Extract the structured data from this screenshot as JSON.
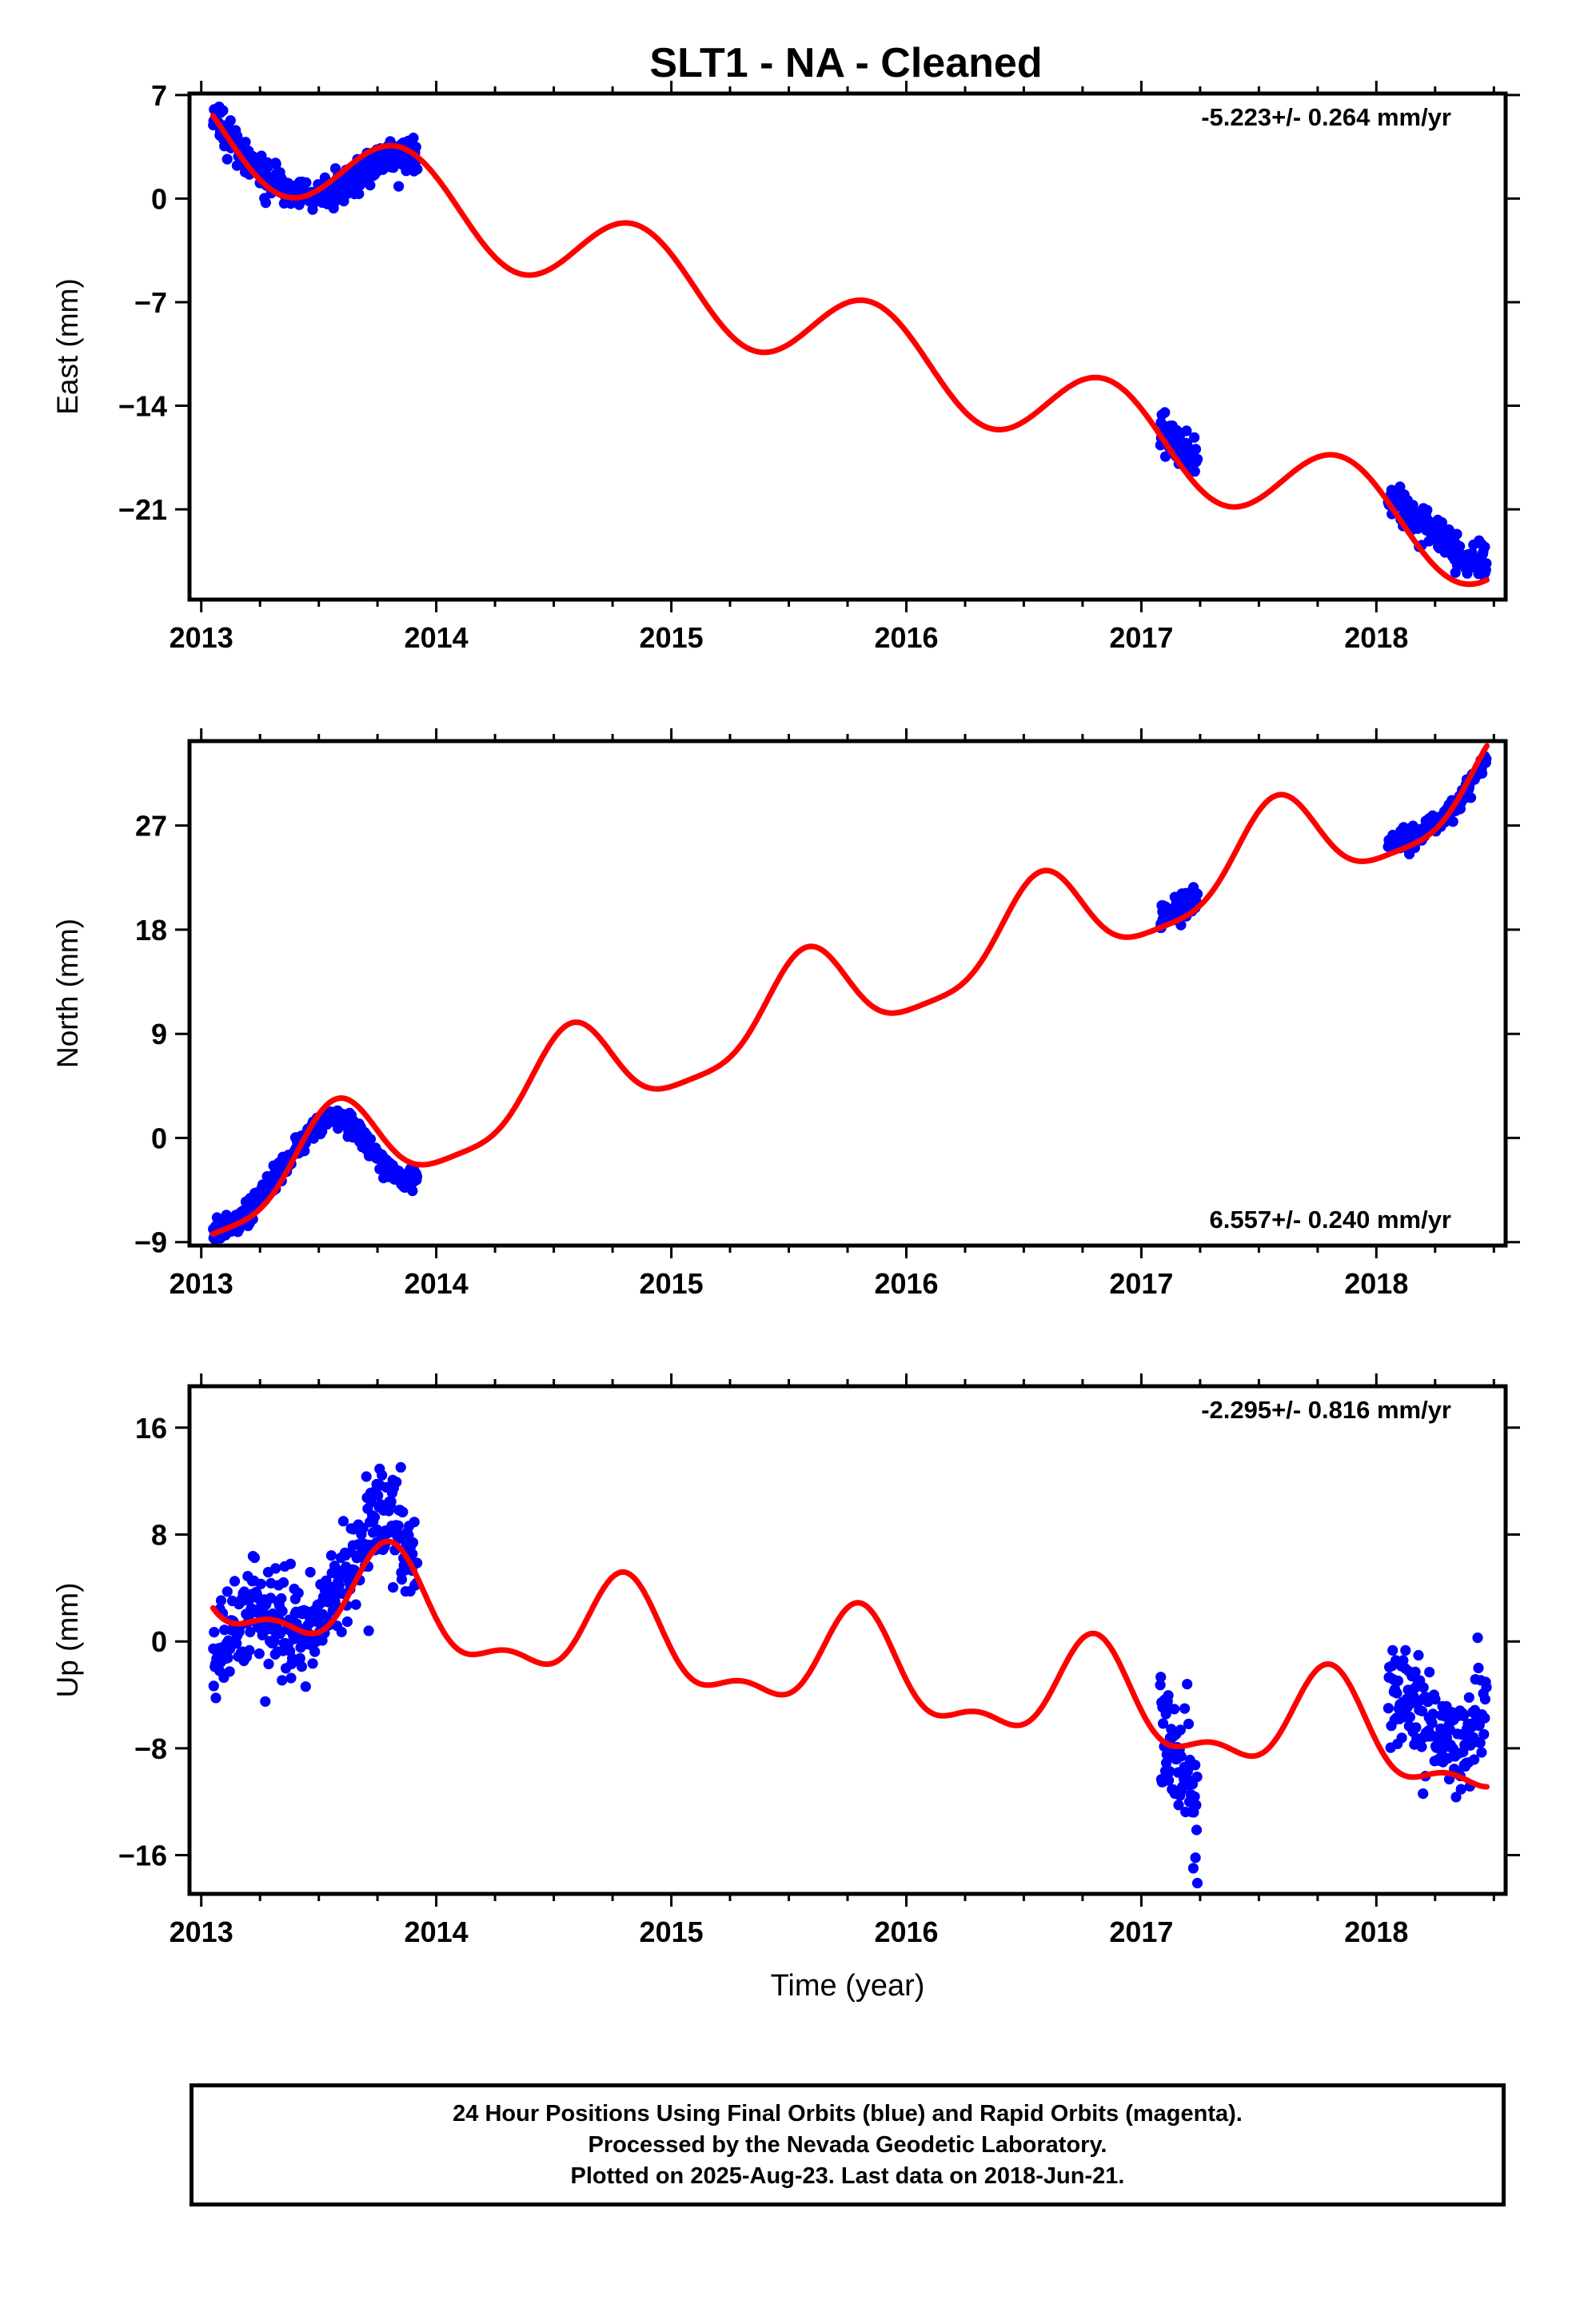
{
  "title": "SLT1  - NA - Cleaned",
  "colors": {
    "data": "#0000ff",
    "model": "#ff0000",
    "axis": "#000000"
  },
  "footer": {
    "line1": "24 Hour Positions Using Final Orbits (blue) and Rapid Orbits (magenta).",
    "line2": "Processed by the Nevada Geodetic Laboratory.",
    "line3": "Plotted on 2025-Aug-23. Last data on 2018-Jun-21."
  },
  "chart_data": [
    {
      "type": "scatter",
      "id": "east",
      "ylabel": "East (mm)",
      "xlabel": "",
      "xlim": [
        2012.95,
        2018.55
      ],
      "ylim": [
        -27.1,
        7.1
      ],
      "xticks": [
        2013,
        2014,
        2015,
        2016,
        2017,
        2018
      ],
      "yticks": [
        7,
        0,
        -7,
        -14,
        -21
      ],
      "ytick_labels": [
        "7",
        "0",
        "−7",
        "−14",
        "−21"
      ],
      "annotation": "-5.223+/- 0.264 mm/yr",
      "annotation_pos": "top-right",
      "grid": false,
      "series": [
        {
          "kind": "points",
          "color": "#0000ff",
          "segments": [
            {
              "x": [
                2013.05,
                2013.12,
                2013.2,
                2013.28,
                2013.36,
                2013.44,
                2013.52,
                2013.6,
                2013.68,
                2013.76,
                2013.84,
                2013.92
              ],
              "y": [
                5.5,
                4.2,
                2.8,
                1.4,
                0.5,
                0.2,
                0.3,
                0.9,
                1.8,
                2.5,
                2.9,
                2.6
              ],
              "sd": 0.9,
              "n": 380
            },
            {
              "x": [
                2017.08,
                2017.16,
                2017.24
              ],
              "y": [
                -15.8,
                -16.9,
                -17.9
              ],
              "sd": 1.0,
              "n": 75
            },
            {
              "x": [
                2018.05,
                2018.15,
                2018.25,
                2018.35,
                2018.47
              ],
              "y": [
                -20.3,
                -21.3,
                -22.5,
                -23.9,
                -25.0
              ],
              "sd": 0.9,
              "n": 160
            }
          ]
        },
        {
          "kind": "model",
          "color": "#ff0000",
          "start": 2013.05,
          "end": 2018.47,
          "value_at_start": 5.6,
          "trend": -5.223,
          "annual": {
            "amp": 2.95,
            "peak": 2013.85
          },
          "semiannual": {
            "amp": 0.0,
            "peak": 0.0
          }
        }
      ]
    },
    {
      "type": "scatter",
      "id": "north",
      "ylabel": "North (mm)",
      "xlabel": "",
      "xlim": [
        2012.95,
        2018.55
      ],
      "ylim": [
        -9.3,
        34.3
      ],
      "xticks": [
        2013,
        2014,
        2015,
        2016,
        2017,
        2018
      ],
      "yticks": [
        27,
        18,
        9,
        0,
        -9
      ],
      "ytick_labels": [
        "27",
        "18",
        "9",
        "0",
        "−9"
      ],
      "annotation": "6.557+/- 0.240 mm/yr",
      "annotation_pos": "bottom-right",
      "grid": false,
      "series": [
        {
          "kind": "points",
          "color": "#0000ff",
          "segments": [
            {
              "x": [
                2013.05,
                2013.15,
                2013.25,
                2013.35,
                2013.45,
                2013.55,
                2013.65,
                2013.75,
                2013.85,
                2013.92
              ],
              "y": [
                -8.2,
                -7.3,
                -5.3,
                -2.5,
                0.3,
                2.0,
                1.0,
                -1.8,
                -3.7,
                -3.2
              ],
              "sd": 0.8,
              "n": 370
            },
            {
              "x": [
                2017.08,
                2017.16,
                2017.24
              ],
              "y": [
                18.8,
                19.8,
                21.0
              ],
              "sd": 0.8,
              "n": 75
            },
            {
              "x": [
                2018.05,
                2018.15,
                2018.25,
                2018.35,
                2018.47
              ],
              "y": [
                25.5,
                26.0,
                27.0,
                29.0,
                33.0
              ],
              "sd": 0.8,
              "n": 160
            }
          ]
        },
        {
          "kind": "model",
          "color": "#ff0000",
          "start": 2013.05,
          "end": 2018.47,
          "value_at_start": -8.3,
          "trend": 6.557,
          "annual": {
            "amp": 4.1,
            "peak": 2013.57
          },
          "semiannual": {
            "amp": 1.0,
            "peak": 2013.58
          }
        }
      ]
    },
    {
      "type": "scatter",
      "id": "up",
      "ylabel": "Up (mm)",
      "xlabel": "Time (year)",
      "xlim": [
        2012.95,
        2018.55
      ],
      "ylim": [
        -18.9,
        19.1
      ],
      "xticks": [
        2013,
        2014,
        2015,
        2016,
        2017,
        2018
      ],
      "yticks": [
        16,
        8,
        0,
        -8,
        -16
      ],
      "ytick_labels": [
        "16",
        "8",
        "0",
        "−8",
        "−16"
      ],
      "annotation": "-2.295+/- 0.816 mm/yr",
      "annotation_pos": "top-right",
      "grid": false,
      "series": [
        {
          "kind": "points",
          "color": "#0000ff",
          "segments": [
            {
              "x": [
                2013.05,
                2013.15,
                2013.25,
                2013.35,
                2013.45,
                2013.55,
                2013.65,
                2013.75,
                2013.85,
                2013.92
              ],
              "y": [
                -1.5,
                1.5,
                2.5,
                1.0,
                0.8,
                2.5,
                6.0,
                9.5,
                8.5,
                6.0
              ],
              "sd": 3.0,
              "n": 360
            },
            {
              "x": [
                2017.08,
                2017.16,
                2017.24
              ],
              "y": [
                -6.5,
                -9.5,
                -12.0
              ],
              "sd": 4.0,
              "n": 80
            },
            {
              "x": [
                2018.05,
                2018.15,
                2018.25,
                2018.35,
                2018.47
              ],
              "y": [
                -3.0,
                -4.5,
                -7.0,
                -7.5,
                -4.5
              ],
              "sd": 3.2,
              "n": 160
            }
          ]
        },
        {
          "kind": "model",
          "color": "#ff0000",
          "start": 2013.05,
          "end": 2018.47,
          "value_at_start": 2.5,
          "trend": -2.295,
          "annual": {
            "amp": 3.5,
            "peak": 2013.8
          },
          "semiannual": {
            "amp": 1.6,
            "peak": 2013.8
          }
        }
      ]
    }
  ]
}
